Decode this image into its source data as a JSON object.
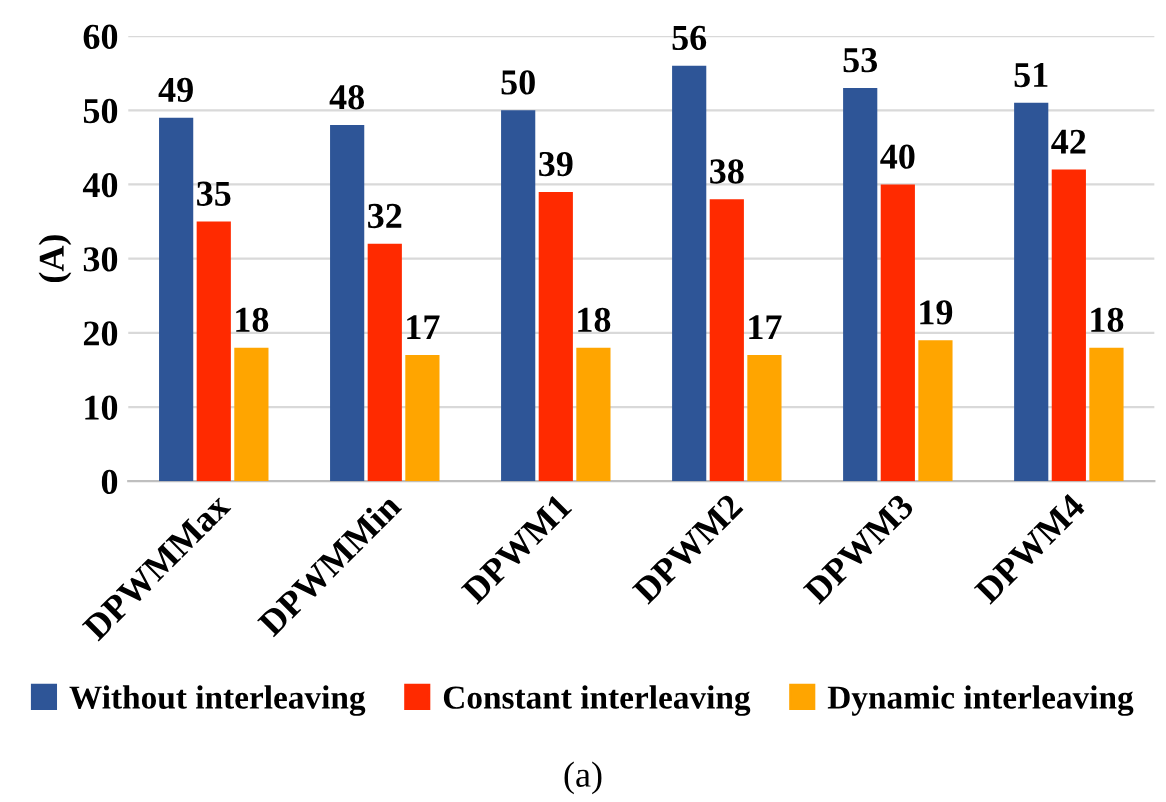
{
  "chart_data": {
    "type": "bar",
    "ylabel": "(A)",
    "categories": [
      "DPWMMax",
      "DPWMMin",
      "DPWM1",
      "DPWM2",
      "DPWM3",
      "DPWM4"
    ],
    "series": [
      {
        "name": "Without interleaving",
        "color": "#2e5597",
        "values": [
          49,
          48,
          50,
          56,
          53,
          51
        ]
      },
      {
        "name": "Constant interleaving",
        "color": "#ff2a00",
        "values": [
          35,
          32,
          39,
          38,
          40,
          42
        ]
      },
      {
        "name": "Dynamic interleaving",
        "color": "#ffa500",
        "values": [
          18,
          17,
          18,
          17,
          19,
          18
        ]
      }
    ],
    "ylim": [
      0,
      60
    ],
    "yticks": [
      0,
      10,
      20,
      30,
      40,
      50,
      60
    ],
    "grid": "y",
    "legend": "bottom",
    "data_labels": true,
    "annotations": [
      "(a)"
    ]
  }
}
